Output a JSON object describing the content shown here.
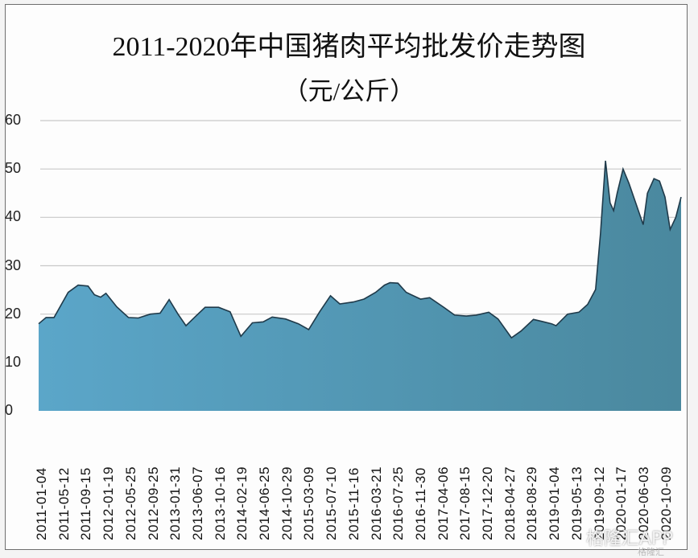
{
  "title": {
    "line1": "2011-2020年中国猪肉平均批发价走势图",
    "line2": "（元/公斤）"
  },
  "colors": {
    "fill_left": "#5ba6c9",
    "fill_right": "#4a889e",
    "outline": "#1f3a4a",
    "gridline": "#c8c8c8"
  },
  "y_axis": {
    "ticks": [
      "0",
      "10",
      "20",
      "30",
      "40",
      "50",
      "60"
    ]
  },
  "x_axis": {
    "ticks": [
      "2011-01-04",
      "2011-05-12",
      "2011-09-15",
      "2012-01-19",
      "2012-05-25",
      "2012-09-25",
      "2013-01-31",
      "2013-06-07",
      "2013-10-16",
      "2014-02-19",
      "2014-06-25",
      "2014-10-29",
      "2015-03-09",
      "2015-07-10",
      "2015-11-16",
      "2016-03-21",
      "2016-07-25",
      "2016-11-30",
      "2017-04-06",
      "2017-08-15",
      "2017-12-20",
      "2018-04-27",
      "2018-08-29",
      "2019-01-04",
      "2019-05-13",
      "2019-09-12",
      "2020-01-17",
      "2020-06-03",
      "2020-10-09"
    ]
  },
  "watermark": {
    "main": "格隆汇APP",
    "sub": "格隆汇"
  },
  "chart_data": {
    "type": "area",
    "title": "2011-2020年中国猪肉平均批发价走势图（元/公斤）",
    "xlabel": "",
    "ylabel": "元/公斤",
    "ylim": [
      0,
      60
    ],
    "yticks": [
      0,
      10,
      20,
      30,
      40,
      50,
      60
    ],
    "grid": "horizontal",
    "legend": "none",
    "x": [
      "2011-01-04",
      "2011-02-15",
      "2011-04-01",
      "2011-06-20",
      "2011-08-15",
      "2011-10-10",
      "2011-11-15",
      "2011-12-20",
      "2012-01-19",
      "2012-03-20",
      "2012-05-25",
      "2012-07-20",
      "2012-09-25",
      "2012-11-20",
      "2013-01-10",
      "2013-03-01",
      "2013-04-15",
      "2013-06-07",
      "2013-08-01",
      "2013-10-16",
      "2013-12-20",
      "2014-02-19",
      "2014-04-25",
      "2014-06-25",
      "2014-08-15",
      "2014-10-29",
      "2015-01-10",
      "2015-03-09",
      "2015-05-10",
      "2015-07-10",
      "2015-09-01",
      "2015-11-16",
      "2016-01-15",
      "2016-03-21",
      "2016-05-10",
      "2016-06-10",
      "2016-07-25",
      "2016-09-10",
      "2016-11-30",
      "2017-01-20",
      "2017-04-06",
      "2017-06-10",
      "2017-08-15",
      "2017-10-10",
      "2017-12-20",
      "2018-02-10",
      "2018-04-27",
      "2018-06-20",
      "2018-08-29",
      "2018-10-15",
      "2018-12-10",
      "2019-01-04",
      "2019-03-10",
      "2019-05-13",
      "2019-07-01",
      "2019-08-15",
      "2019-09-12",
      "2019-10-10",
      "2019-11-05",
      "2019-11-25",
      "2019-12-15",
      "2020-01-17",
      "2020-02-20",
      "2020-04-10",
      "2020-05-10",
      "2020-06-03",
      "2020-07-10",
      "2020-08-10",
      "2020-09-10",
      "2020-10-09",
      "2020-11-10",
      "2020-12-10"
    ],
    "values": [
      18.0,
      19.3,
      19.3,
      24.5,
      26.0,
      25.8,
      24.0,
      23.5,
      24.3,
      21.5,
      19.3,
      19.2,
      20.0,
      20.2,
      23.0,
      20.0,
      17.6,
      19.5,
      21.4,
      21.4,
      20.5,
      15.4,
      18.2,
      18.4,
      19.4,
      19.0,
      18.0,
      16.8,
      20.5,
      23.8,
      22.1,
      22.5,
      23.1,
      24.5,
      26.0,
      26.5,
      26.4,
      24.5,
      23.1,
      23.4,
      21.5,
      19.8,
      19.6,
      19.8,
      20.4,
      19.0,
      15.1,
      16.5,
      18.9,
      18.5,
      18.0,
      17.6,
      20.0,
      20.4,
      22.0,
      25.1,
      36.7,
      51.7,
      43.0,
      41.4,
      45.0,
      50.0,
      47.0,
      41.7,
      38.5,
      45.0,
      48.0,
      47.5,
      44.2,
      37.5,
      40.0,
      44.2
    ]
  }
}
